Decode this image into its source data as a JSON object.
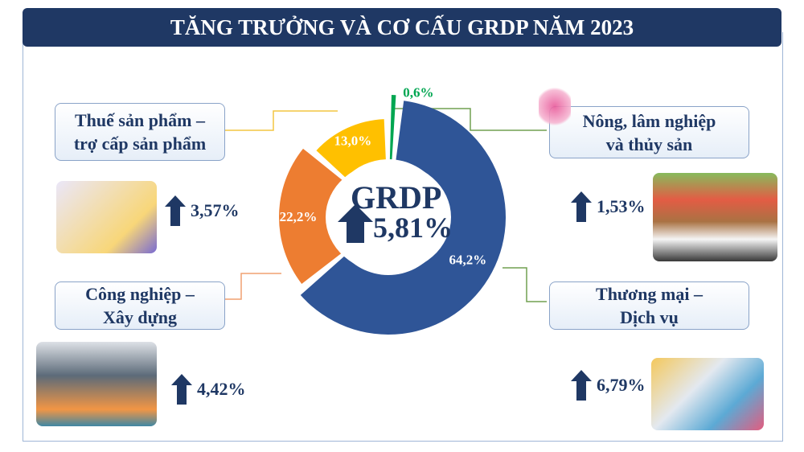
{
  "header": {
    "title": "TĂNG TRƯỞNG VÀ CƠ CẤU GRDP NĂM 2023"
  },
  "center": {
    "label": "GRDP",
    "growth": "5,81%"
  },
  "sectors": [
    {
      "name_line1": "Thuế sản phẩm –",
      "name_line2": "trợ cấp sản phẩm",
      "growth": "3,57%"
    },
    {
      "name_line1": "Công nghiệp –",
      "name_line2": "Xây dựng",
      "growth": "4,42%"
    },
    {
      "name_line1": "Nông, lâm nghiệp",
      "name_line2": "và thủy sản",
      "growth": "1,53%"
    },
    {
      "name_line1": "Thương mại –",
      "name_line2": "Dịch vụ",
      "growth": "6,79%"
    }
  ],
  "chart_data": {
    "type": "pie",
    "categories": [
      "Nông, lâm nghiệp và thủy sản",
      "Thương mại – Dịch vụ",
      "Công nghiệp – Xây dựng",
      "Thuế sản phẩm – trợ cấp sản phẩm"
    ],
    "values": [
      0.6,
      64.2,
      22.2,
      13.0
    ],
    "labels": [
      "0,6%",
      "64,2%",
      "22,2%",
      "13,0%"
    ],
    "colors": [
      "#00a651",
      "#2f5597",
      "#ed7d31",
      "#ffc000"
    ],
    "label_colors": [
      "#00a651",
      "#ffffff",
      "#ffffff",
      "#ffffff"
    ]
  }
}
